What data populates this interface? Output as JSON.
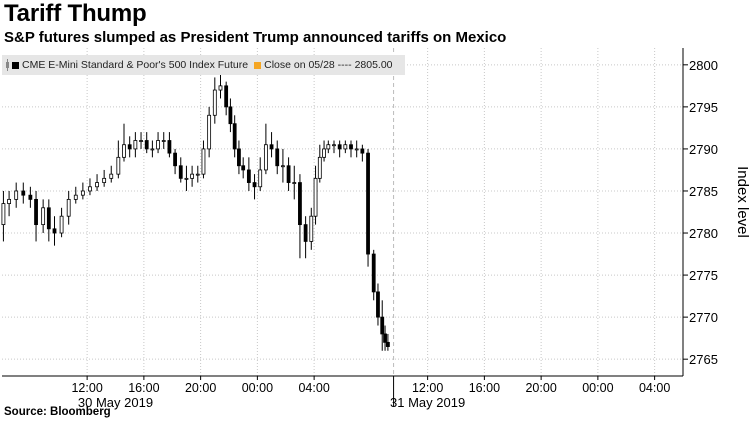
{
  "title": "Tariff Thump",
  "subtitle": "S&P futures slumped as President Trump announced tariffs on Mexico",
  "source": "Source: Bloomberg",
  "legend": {
    "series_label": "CME E-Mini Standard & Poor's 500 Index Future",
    "close_label": "Close on 05/28 ---- 2805.00"
  },
  "colors": {
    "candle": "#000000",
    "close_marker": "#f5a623",
    "grid": "#c8c8c8",
    "legend_bg": "#e6e6e6"
  },
  "chart_data": {
    "type": "line",
    "title": "Tariff Thump",
    "subtitle": "S&P futures slumped as President Trump announced tariffs on Mexico",
    "ylabel": "Index level",
    "ylim": [
      2763,
      2802
    ],
    "yticks": [
      2765,
      2770,
      2775,
      2780,
      2785,
      2790,
      2795,
      2800
    ],
    "xlim_hours": [
      6,
      54
    ],
    "xtick_labels": [
      "12:00",
      "16:00",
      "20:00",
      "00:00",
      "04:00",
      "12:00",
      "16:00",
      "20:00",
      "00:00",
      "04:00"
    ],
    "xtick_hours": [
      12,
      16,
      20,
      24,
      28,
      36,
      40,
      44,
      48,
      52
    ],
    "date_labels": [
      "30 May 2019",
      "31 May 2019"
    ],
    "date_label_hours": [
      14,
      36
    ],
    "legend": [
      "CME E-Mini Standard & Poor's 500 Index Future",
      "Close on 05/28 ---- 2805.00"
    ],
    "reference_close": 2805.0,
    "grid": true,
    "legend_position": "top-left",
    "series": [
      {
        "name": "CME E-Mini Standard & Poor's 500 Index Future",
        "x_hours": [
          6.0,
          6.3,
          6.6,
          7.0,
          7.5,
          8.0,
          8.4,
          8.8,
          9.2,
          9.6,
          10.0,
          10.5,
          11.0,
          11.5,
          12.0,
          12.5,
          13.0,
          13.5,
          14.0,
          14.5,
          15.0,
          15.5,
          16.0,
          16.5,
          17.0,
          17.5,
          18.0,
          18.5,
          19.0,
          19.5,
          20.0,
          20.5,
          21.0,
          21.5,
          22.0,
          22.3,
          22.6,
          23.0,
          23.5,
          24.0,
          24.5,
          25.0,
          25.5,
          26.0,
          26.5,
          27.0,
          27.5,
          28.0,
          28.3,
          28.6,
          29.0,
          29.5,
          30.0,
          30.5,
          31.0,
          31.5,
          32.0,
          32.3,
          32.6,
          32.9,
          33.1
        ],
        "values": [
          2780.5,
          2784.0,
          2783.5,
          2785.5,
          2784.0,
          2785.0,
          2779.0,
          2784.0,
          2780.0,
          2779.5,
          2780.5,
          2784.0,
          2784.5,
          2785.0,
          2785.5,
          2786.0,
          2786.5,
          2787.0,
          2789.0,
          2791.0,
          2790.0,
          2792.0,
          2791.0,
          2789.5,
          2790.5,
          2791.0,
          2791.5,
          2789.0,
          2787.0,
          2786.0,
          2787.0,
          2786.5,
          2787.5,
          2792.0,
          2797.0,
          2798.5,
          2796.0,
          2794.0,
          2788.0,
          2787.5,
          2786.0,
          2785.0,
          2789.0,
          2792.0,
          2787.0,
          2788.0,
          2784.5,
          2787.0,
          2780.0,
          2778.0,
          2784.0,
          2789.5,
          2790.5,
          2790.5,
          2790.0,
          2790.5,
          2790.0,
          2789.5,
          2776.0,
          2771.0,
          2767.0
        ]
      }
    ],
    "candles": {
      "x_hours": [
        6.1,
        6.5,
        7.0,
        7.5,
        8.0,
        8.4,
        8.9,
        9.3,
        9.7,
        10.2,
        10.7,
        11.2,
        11.7,
        12.2,
        12.7,
        13.2,
        13.7,
        14.2,
        14.6,
        15.0,
        15.4,
        15.8,
        16.2,
        16.6,
        17.0,
        17.4,
        17.8,
        18.2,
        18.6,
        19.0,
        19.4,
        19.8,
        20.2,
        20.6,
        21.0,
        21.4,
        21.8,
        22.1,
        22.4,
        22.7,
        23.0,
        23.4,
        23.8,
        24.2,
        24.6,
        25.0,
        25.4,
        25.8,
        26.2,
        26.6,
        27.0,
        27.4,
        27.8,
        28.1,
        28.4,
        28.7,
        29.0,
        29.4,
        29.8,
        30.2,
        30.6,
        31.0,
        31.4,
        31.8,
        32.2,
        32.5,
        32.8,
        33.0,
        33.2
      ],
      "open": [
        2781.0,
        2783.5,
        2784.0,
        2785.0,
        2784.5,
        2784.0,
        2781.0,
        2783.0,
        2780.5,
        2780.0,
        2782.0,
        2784.0,
        2784.5,
        2785.0,
        2785.5,
        2786.0,
        2786.5,
        2787.0,
        2789.0,
        2790.5,
        2790.0,
        2791.0,
        2791.0,
        2790.0,
        2790.0,
        2791.0,
        2791.0,
        2789.5,
        2788.0,
        2786.5,
        2786.5,
        2787.0,
        2787.0,
        2790.0,
        2794.0,
        2797.0,
        2797.5,
        2795.0,
        2793.0,
        2790.0,
        2788.0,
        2787.5,
        2786.0,
        2785.5,
        2787.5,
        2790.5,
        2790.0,
        2788.0,
        2788.0,
        2786.0,
        2786.0,
        2781.0,
        2779.0,
        2782.0,
        2786.5,
        2789.0,
        2790.0,
        2790.5,
        2790.5,
        2790.0,
        2790.5,
        2790.0,
        2790.0,
        2789.5,
        2777.5,
        2773.0,
        2770.0,
        2768.0,
        2767.0
      ],
      "close": [
        2783.5,
        2784.0,
        2785.0,
        2784.5,
        2784.0,
        2781.0,
        2783.0,
        2780.5,
        2780.0,
        2782.0,
        2784.0,
        2784.5,
        2785.0,
        2785.5,
        2786.0,
        2786.5,
        2787.0,
        2789.0,
        2790.5,
        2790.0,
        2791.0,
        2791.0,
        2790.0,
        2790.0,
        2791.0,
        2791.0,
        2789.5,
        2788.0,
        2786.5,
        2786.5,
        2787.0,
        2787.0,
        2790.0,
        2794.0,
        2797.0,
        2797.5,
        2795.0,
        2793.0,
        2790.0,
        2788.0,
        2787.5,
        2786.0,
        2785.5,
        2787.5,
        2790.5,
        2790.0,
        2788.0,
        2788.0,
        2786.0,
        2786.0,
        2781.0,
        2779.0,
        2782.0,
        2786.5,
        2789.0,
        2790.0,
        2790.5,
        2790.5,
        2790.0,
        2790.5,
        2790.0,
        2790.0,
        2789.5,
        2777.5,
        2773.0,
        2770.0,
        2768.0,
        2767.0,
        2766.5
      ],
      "high": [
        2785.0,
        2785.0,
        2786.0,
        2786.0,
        2785.5,
        2785.0,
        2784.0,
        2784.0,
        2782.0,
        2783.0,
        2785.0,
        2785.5,
        2786.0,
        2786.5,
        2787.0,
        2787.5,
        2788.0,
        2791.0,
        2793.0,
        2791.5,
        2792.0,
        2792.0,
        2792.0,
        2791.0,
        2792.0,
        2792.0,
        2792.0,
        2790.0,
        2789.0,
        2788.0,
        2788.0,
        2788.0,
        2791.0,
        2795.0,
        2798.5,
        2799.0,
        2798.0,
        2796.0,
        2794.0,
        2791.0,
        2789.0,
        2789.0,
        2787.0,
        2789.0,
        2793.0,
        2792.0,
        2791.0,
        2790.0,
        2789.0,
        2788.0,
        2787.0,
        2782.0,
        2783.0,
        2788.0,
        2790.5,
        2791.0,
        2791.0,
        2791.0,
        2791.0,
        2791.0,
        2791.0,
        2791.0,
        2790.5,
        2790.0,
        2778.0,
        2774.0,
        2772.0,
        2769.0,
        2768.0
      ],
      "low": [
        2779.0,
        2782.0,
        2783.0,
        2783.5,
        2783.0,
        2779.0,
        2780.0,
        2779.0,
        2778.5,
        2779.5,
        2781.0,
        2783.5,
        2784.0,
        2784.5,
        2785.0,
        2785.5,
        2786.0,
        2786.5,
        2788.5,
        2789.0,
        2789.0,
        2790.0,
        2789.5,
        2789.0,
        2789.5,
        2790.0,
        2789.0,
        2787.0,
        2786.0,
        2785.0,
        2785.5,
        2786.0,
        2786.5,
        2789.0,
        2793.0,
        2796.0,
        2794.0,
        2792.0,
        2789.0,
        2787.0,
        2786.5,
        2785.0,
        2784.0,
        2785.0,
        2787.0,
        2789.0,
        2787.0,
        2786.0,
        2785.0,
        2784.0,
        2777.0,
        2777.0,
        2778.0,
        2781.0,
        2786.0,
        2788.5,
        2789.5,
        2789.5,
        2789.0,
        2789.5,
        2789.0,
        2789.0,
        2788.5,
        2776.0,
        2772.0,
        2769.0,
        2766.0,
        2766.0,
        2766.0
      ]
    }
  }
}
